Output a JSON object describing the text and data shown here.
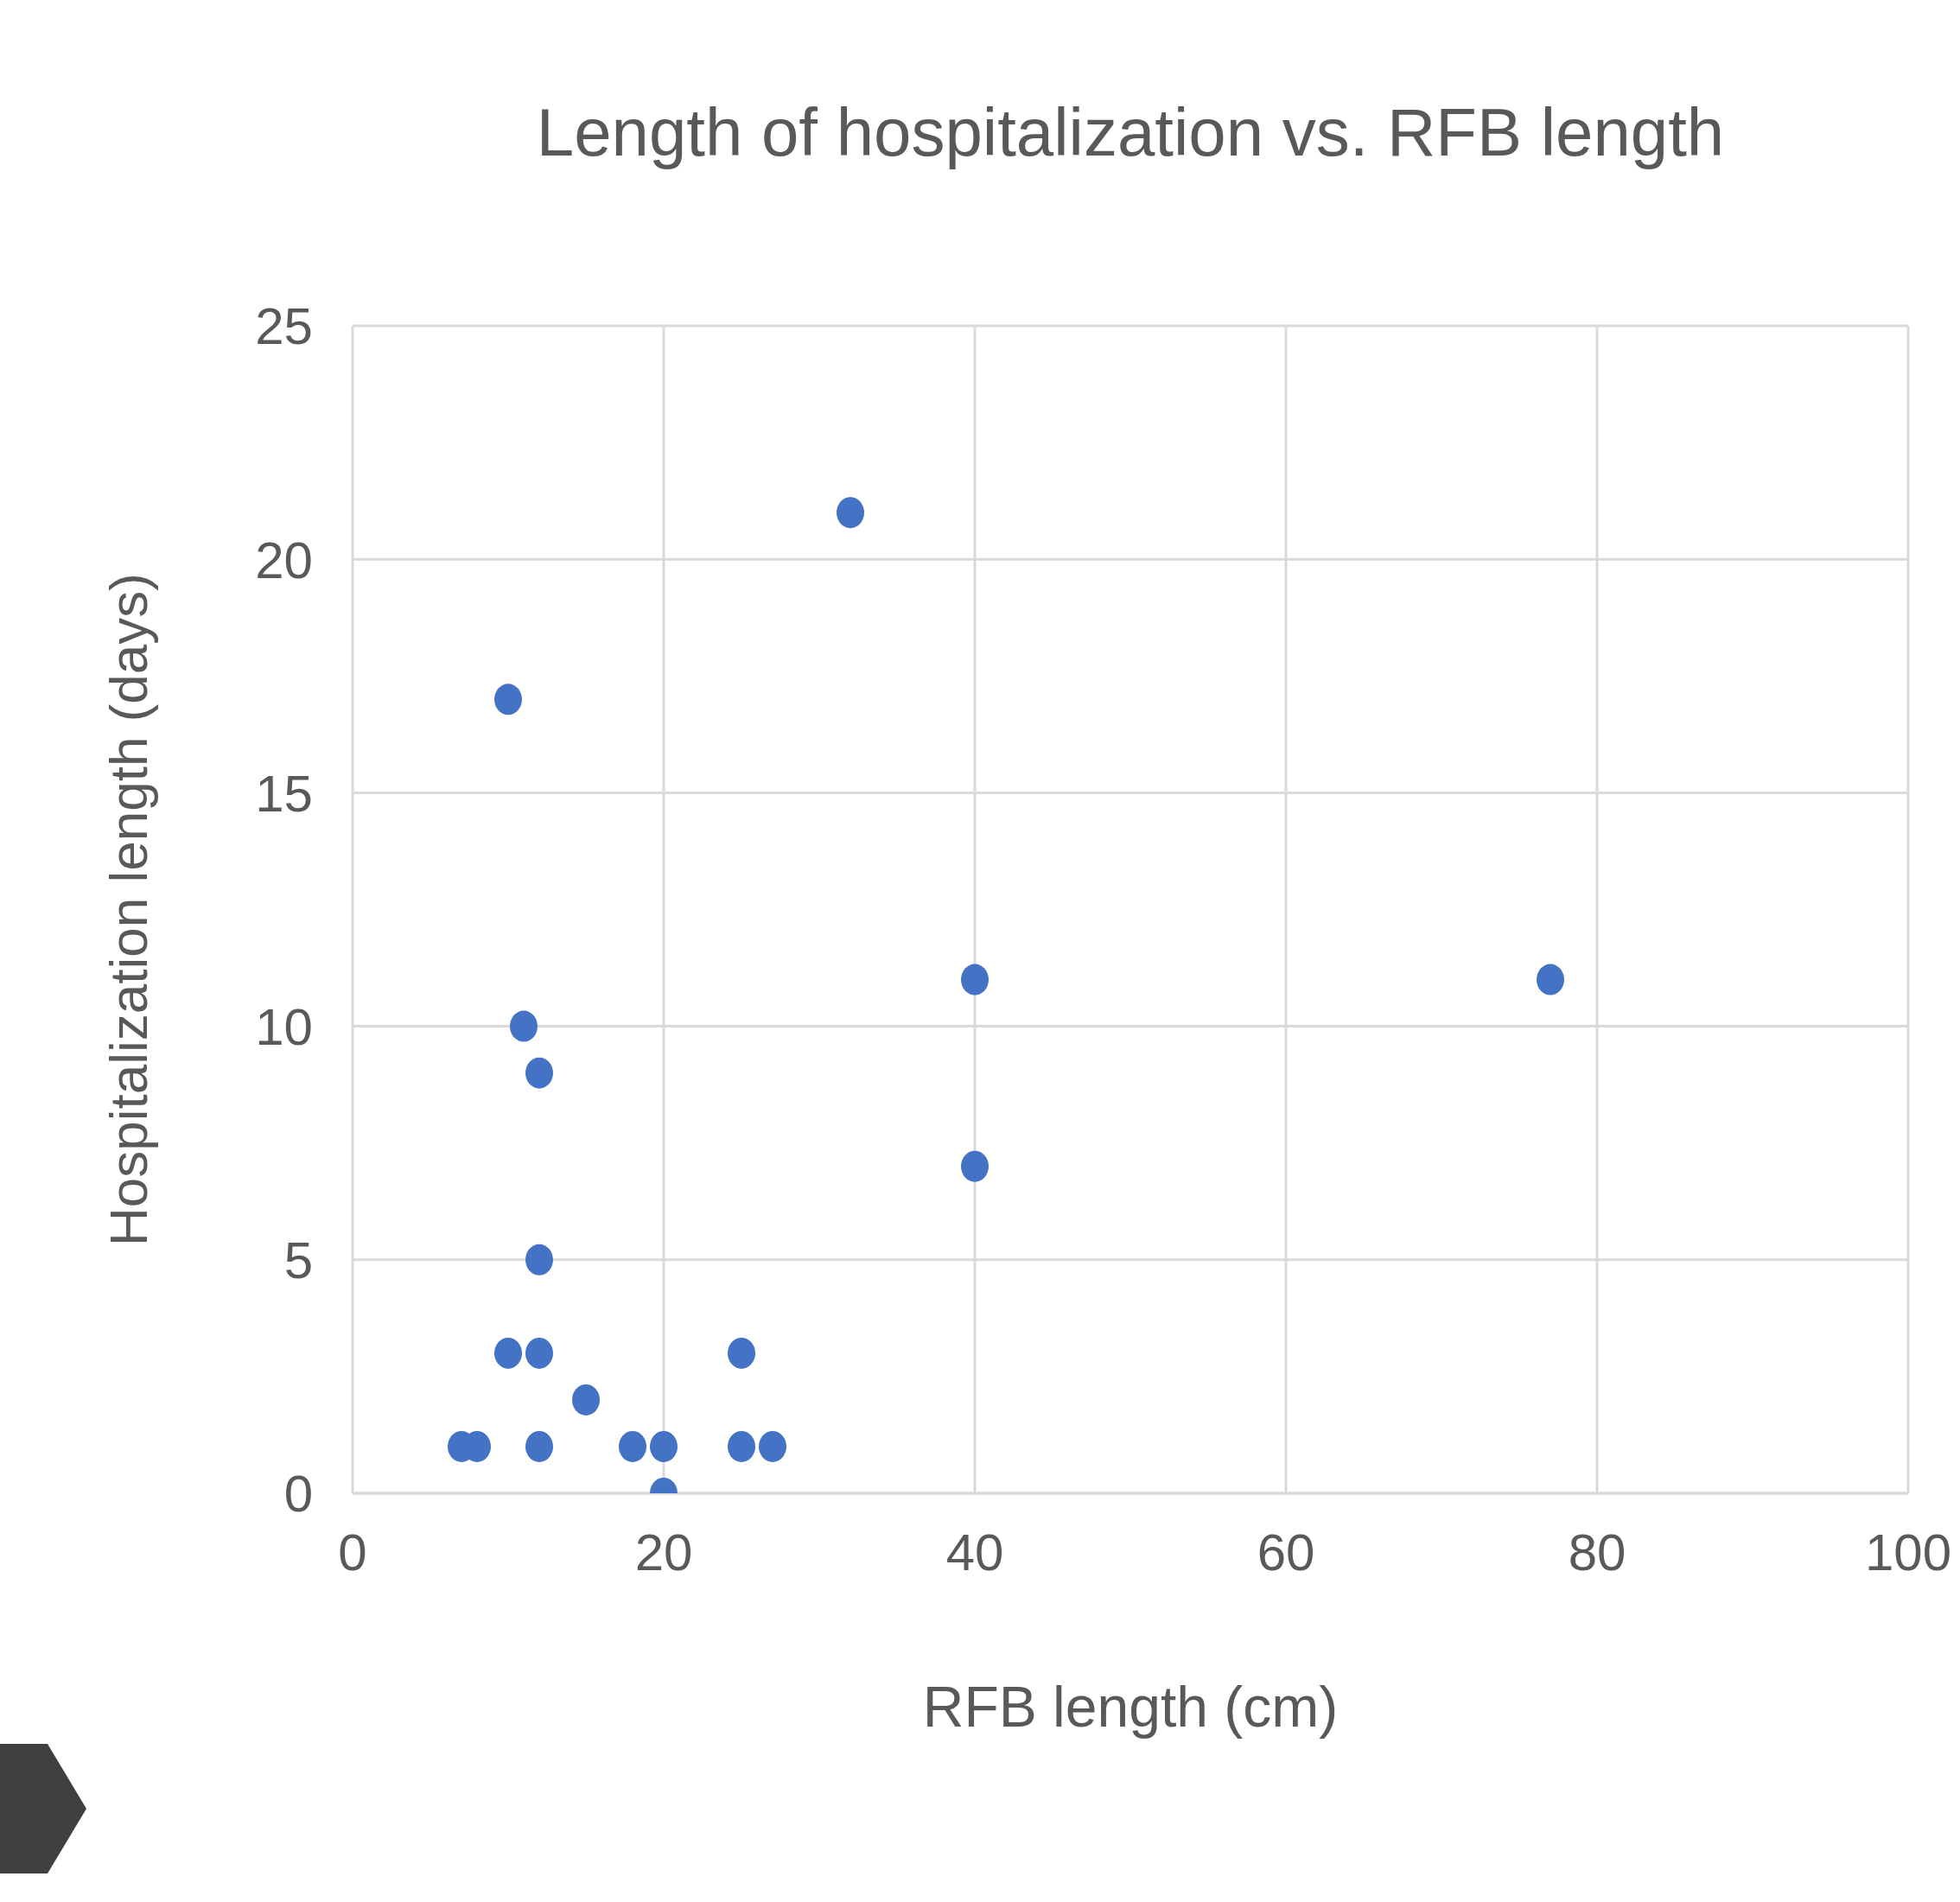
{
  "chart_data": {
    "type": "scatter",
    "title": "Length of hospitalization vs. RFB length",
    "xlabel": "RFB length (cm)",
    "ylabel": "Hospitalization length (days)",
    "series": [
      {
        "color": "#4472c4",
        "x": [
          32,
          10,
          11,
          12,
          12,
          10,
          12,
          15,
          7,
          8,
          12,
          18,
          20,
          20,
          25,
          25,
          27,
          40,
          40,
          77
        ],
        "values": [
          21,
          17,
          10,
          9,
          5,
          3,
          3,
          2,
          1,
          1,
          1,
          1,
          1,
          0,
          3,
          1,
          1,
          11,
          7,
          11
        ]
      }
    ],
    "xlim": [
      0,
      100
    ],
    "xticks": [
      0,
      20,
      40,
      60,
      80,
      100
    ],
    "ylim": [
      0,
      25
    ],
    "yticks": [
      0,
      5,
      10,
      15,
      20,
      25
    ],
    "grid": true,
    "legend": false,
    "marker": "circle"
  }
}
